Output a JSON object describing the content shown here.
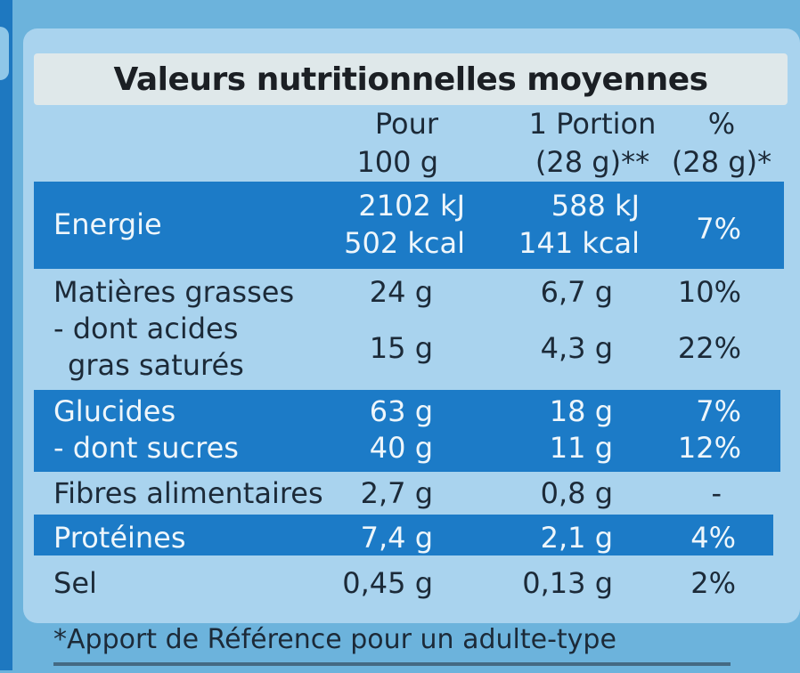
{
  "title": "Valeurs nutritionnelles moyennes",
  "columns": {
    "per100": [
      "Pour",
      "100 g"
    ],
    "portion": [
      "1 Portion",
      "(28 g)**"
    ],
    "percent": [
      "%",
      "(28 g)*"
    ]
  },
  "rows": {
    "energie": {
      "label": "Energie",
      "per100_kj": "2102 kJ",
      "per100_kcal": "502 kcal",
      "portion_kj": "588 kJ",
      "portion_kcal": "141 kcal",
      "percent": "7%"
    },
    "matieres": {
      "label": "Matières grasses",
      "per100": "24 g",
      "portion": "6,7 g",
      "percent": "10%"
    },
    "satures": {
      "label1": "- dont acides",
      "label2": "gras saturés",
      "per100": "15 g",
      "portion": "4,3 g",
      "percent": "22%"
    },
    "glucides": {
      "label": "Glucides",
      "per100": "63 g",
      "portion": "18 g",
      "percent": "7%"
    },
    "sucres": {
      "label": "- dont sucres",
      "per100": "40 g",
      "portion": "11 g",
      "percent": "12%"
    },
    "fibres": {
      "label": "Fibres alimentaires",
      "per100": "2,7 g",
      "portion": "0,8 g",
      "percent": "-"
    },
    "proteines": {
      "label": "Protéines",
      "per100": "7,4 g",
      "portion": "2,1 g",
      "percent": "4%"
    },
    "sel": {
      "label": "Sel",
      "per100": "0,45 g",
      "portion": "0,13 g",
      "percent": "2%"
    }
  },
  "footnote": "*Apport de Référence pour un adulte-type"
}
